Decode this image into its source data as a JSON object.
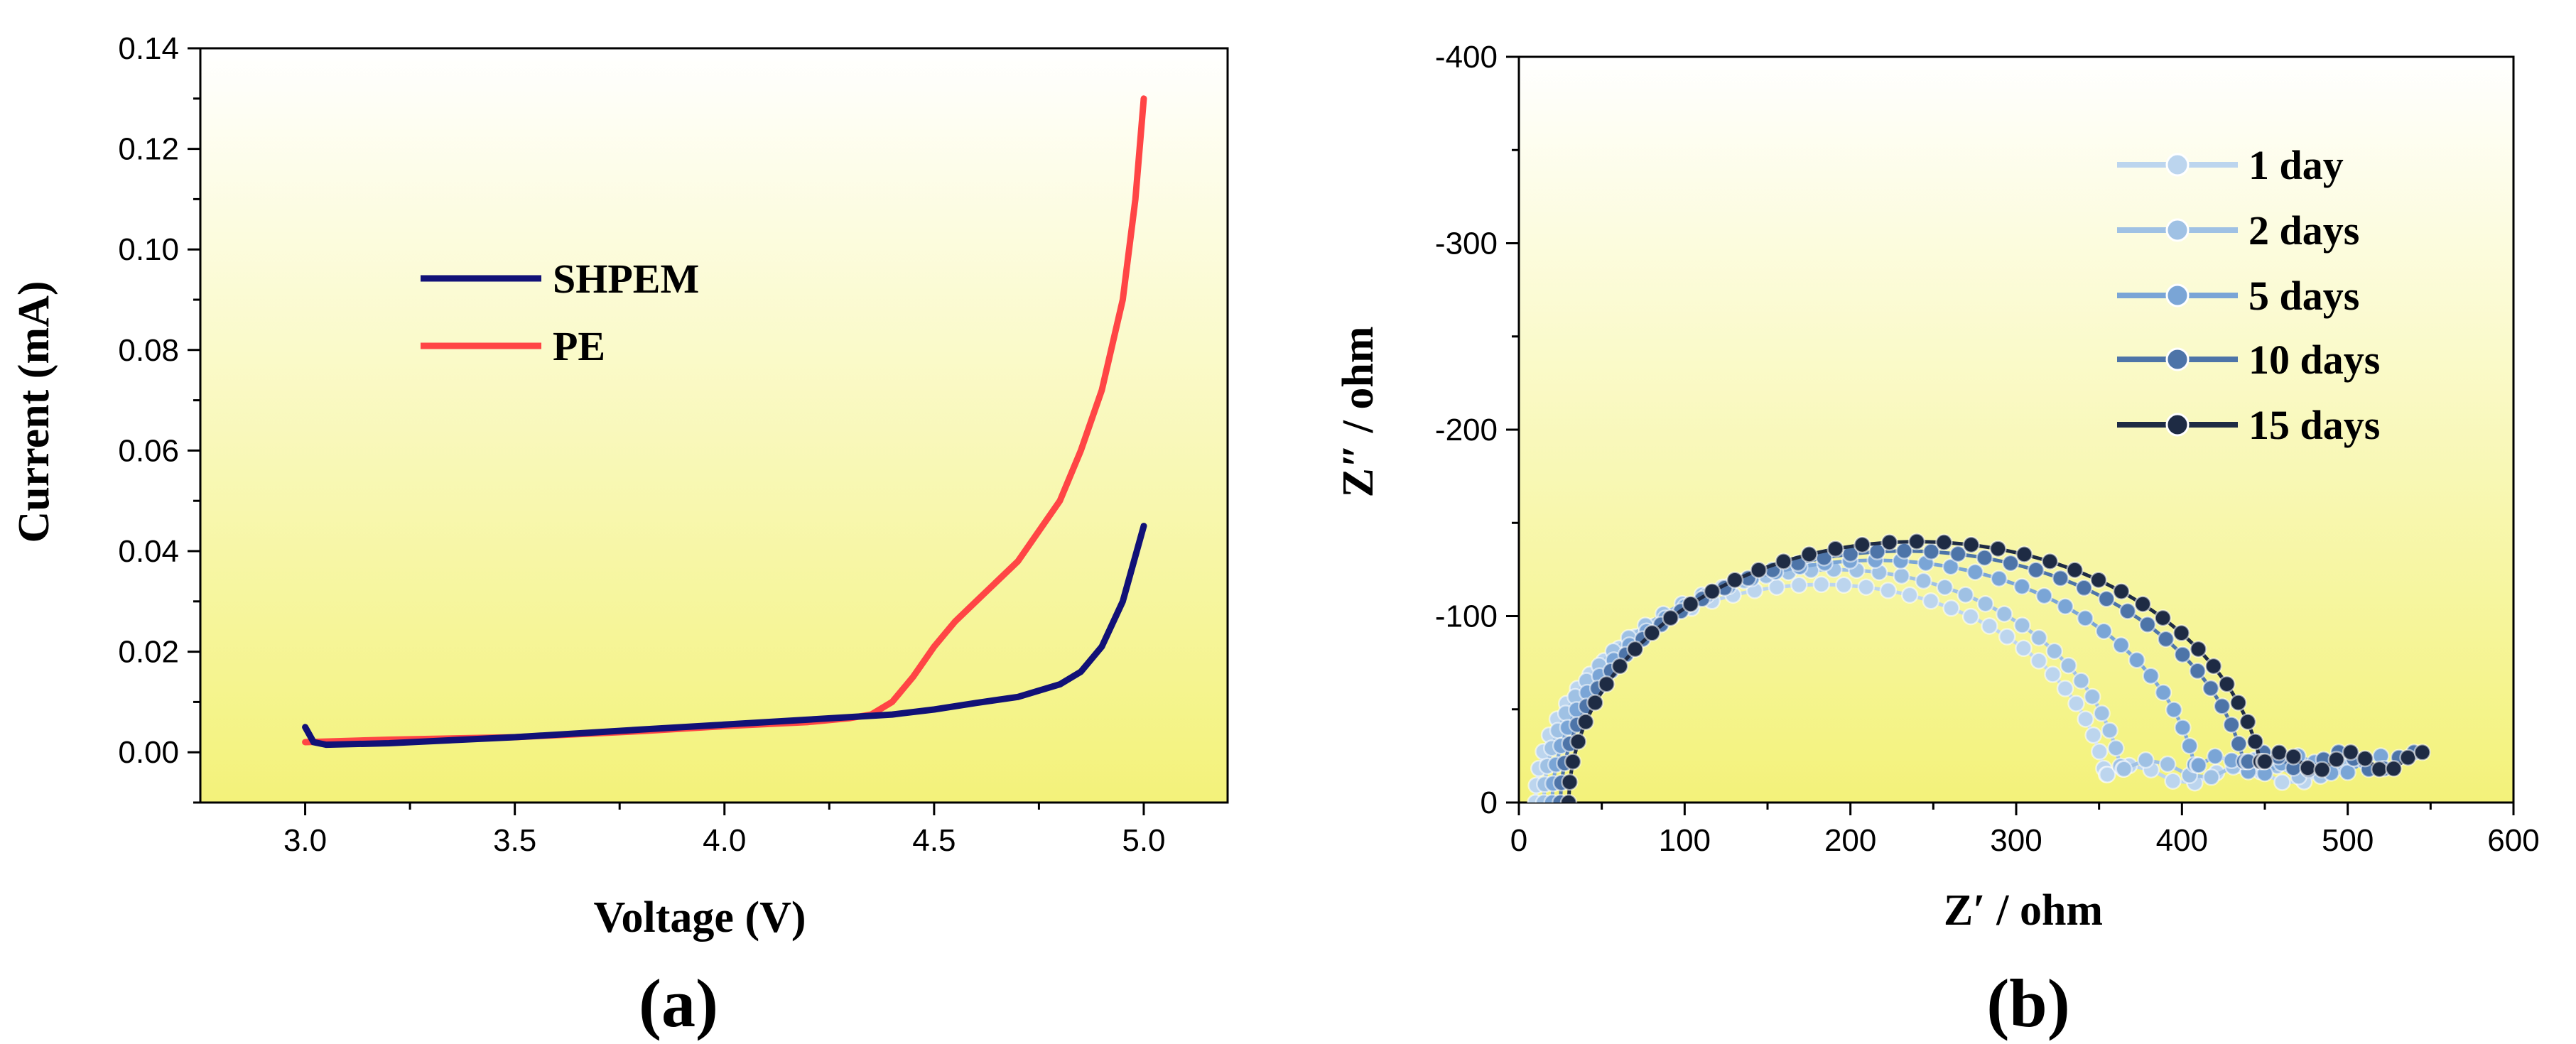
{
  "colors": {
    "plot_bg_top": "#ffffff",
    "plot_bg_bottom": "#f3f27a",
    "shpem": "#111177",
    "pe": "#ff4545",
    "day1": "#bcd5ee",
    "day2": "#9fc1e4",
    "day5": "#7aa5d6",
    "day10": "#4d74a8",
    "day15": "#1e2b44"
  },
  "chart_data": [
    {
      "type": "line",
      "panel_label": "(a)",
      "xlabel": "Voltage (V)",
      "ylabel": "Current (mA)",
      "xlim": [
        2.75,
        5.2
      ],
      "ylim": [
        -0.01,
        0.14
      ],
      "xticks": [
        "3.0",
        "3.5",
        "4.0",
        "4.5",
        "5.0"
      ],
      "xtick_values": [
        3.0,
        3.5,
        4.0,
        4.5,
        5.0
      ],
      "yticks": [
        "0.00",
        "0.02",
        "0.04",
        "0.06",
        "0.08",
        "0.10",
        "0.12",
        "0.14"
      ],
      "ytick_values": [
        0.0,
        0.02,
        0.04,
        0.06,
        0.08,
        0.1,
        0.12,
        0.14
      ],
      "legend_position": "upper-left",
      "series": [
        {
          "name": "SHPEM",
          "color_key": "shpem",
          "x": [
            3.0,
            3.02,
            3.05,
            3.2,
            3.5,
            3.8,
            4.0,
            4.2,
            4.4,
            4.5,
            4.6,
            4.7,
            4.8,
            4.85,
            4.9,
            4.95,
            5.0
          ],
          "y": [
            0.005,
            0.002,
            0.0015,
            0.0018,
            0.003,
            0.0045,
            0.0055,
            0.0065,
            0.0075,
            0.0085,
            0.0098,
            0.011,
            0.0135,
            0.016,
            0.021,
            0.03,
            0.045
          ]
        },
        {
          "name": "PE",
          "color_key": "pe",
          "x": [
            3.0,
            3.2,
            3.5,
            3.8,
            4.0,
            4.2,
            4.3,
            4.35,
            4.4,
            4.45,
            4.5,
            4.55,
            4.6,
            4.7,
            4.8,
            4.85,
            4.9,
            4.95,
            4.98,
            5.0
          ],
          "y": [
            0.002,
            0.0025,
            0.003,
            0.0042,
            0.0052,
            0.006,
            0.0068,
            0.0075,
            0.01,
            0.015,
            0.021,
            0.026,
            0.03,
            0.038,
            0.05,
            0.06,
            0.072,
            0.09,
            0.11,
            0.13
          ]
        }
      ]
    },
    {
      "type": "scatter",
      "panel_label": "(b)",
      "xlabel": "Z′ / ohm",
      "ylabel": "Z″ / ohm",
      "xlim": [
        0,
        600
      ],
      "ylim": [
        0,
        -400
      ],
      "xticks": [
        "0",
        "100",
        "200",
        "300",
        "400",
        "500",
        "600"
      ],
      "xtick_values": [
        0,
        100,
        200,
        300,
        400,
        500,
        600
      ],
      "yticks": [
        "0",
        "-100",
        "-200",
        "-300",
        "-400"
      ],
      "ytick_values": [
        0,
        -100,
        -200,
        -300,
        -400
      ],
      "legend_position": "top-right",
      "series": [
        {
          "name": "1 day",
          "color_key": "day1",
          "r0": 10,
          "rct": 355,
          "peak": -117,
          "tail_end": 500,
          "tail_level": -15
        },
        {
          "name": "2 days",
          "color_key": "day2",
          "r0": 15,
          "rct": 365,
          "peak": -125,
          "tail_end": 510,
          "tail_level": -18
        },
        {
          "name": "5 days",
          "color_key": "day5",
          "r0": 20,
          "rct": 410,
          "peak": -130,
          "tail_end": 520,
          "tail_level": -20
        },
        {
          "name": "10 days",
          "color_key": "day10",
          "r0": 25,
          "rct": 440,
          "peak": -135,
          "tail_end": 540,
          "tail_level": -22
        },
        {
          "name": "15 days",
          "color_key": "day15",
          "r0": 30,
          "rct": 450,
          "peak": -140,
          "tail_end": 545,
          "tail_level": -22
        }
      ]
    }
  ]
}
